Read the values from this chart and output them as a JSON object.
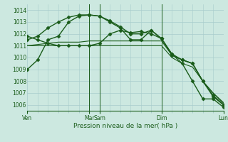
{
  "background_color": "#cce8e0",
  "grid_color": "#a8cccc",
  "line_color": "#1a5c1a",
  "tick_label_color": "#1a5c1a",
  "xlabel": "Pression niveau de la mer( hPa )",
  "xlabel_color": "#1a5c1a",
  "ymin": 1005.5,
  "ymax": 1014.5,
  "yticks": [
    1006,
    1007,
    1008,
    1009,
    1010,
    1011,
    1012,
    1013,
    1014
  ],
  "xmin": 0,
  "xmax": 57,
  "xtick_labels": [
    "Ven",
    "Mar",
    "Sam",
    "Dim",
    "Lun"
  ],
  "xtick_positions": [
    0,
    18,
    21,
    39,
    57
  ],
  "vlines": [
    18,
    21,
    39
  ],
  "vline_color": "#1a5c1a",
  "vline_lw": 0.7,
  "series": [
    {
      "x": [
        0,
        3,
        6,
        9,
        12,
        15,
        18,
        21,
        24,
        27,
        30,
        33,
        36,
        39,
        42,
        45,
        48,
        51,
        54,
        57
      ],
      "y": [
        1009.0,
        1009.8,
        1011.5,
        1011.8,
        1013.0,
        1013.5,
        1013.6,
        1013.5,
        1013.0,
        1012.5,
        1011.5,
        1011.5,
        1012.3,
        1011.6,
        1010.3,
        1009.5,
        1008.0,
        1006.5,
        1006.5,
        1005.8
      ],
      "marker": "D",
      "markersize": 2.5,
      "linewidth": 1.0
    },
    {
      "x": [
        0,
        3,
        6,
        9,
        12,
        15,
        18,
        21,
        24,
        27,
        30,
        33,
        36,
        39,
        42,
        45,
        48,
        51,
        54,
        57
      ],
      "y": [
        1011.5,
        1011.8,
        1012.5,
        1013.0,
        1013.4,
        1013.6,
        1013.6,
        1013.5,
        1013.1,
        1012.6,
        1012.0,
        1012.0,
        1012.3,
        1011.6,
        1010.3,
        1009.8,
        1009.5,
        1008.0,
        1006.7,
        1006.0
      ],
      "marker": "D",
      "markersize": 2.5,
      "linewidth": 1.0
    },
    {
      "x": [
        0,
        3,
        6,
        9,
        12,
        15,
        18,
        21,
        24,
        27,
        30,
        33,
        36,
        39,
        42,
        45,
        48,
        51,
        54,
        57
      ],
      "y": [
        1011.0,
        1011.1,
        1011.2,
        1011.3,
        1011.3,
        1011.3,
        1011.4,
        1011.4,
        1011.4,
        1011.4,
        1011.4,
        1011.4,
        1011.4,
        1011.4,
        1010.2,
        1009.8,
        1009.5,
        1008.0,
        1007.0,
        1006.2
      ],
      "marker": null,
      "markersize": 0,
      "linewidth": 0.8
    },
    {
      "x": [
        0,
        3,
        6,
        9,
        12,
        15,
        18,
        21,
        24,
        27,
        30,
        33,
        36,
        39,
        42,
        45,
        48,
        51,
        54,
        57
      ],
      "y": [
        1011.0,
        1011.0,
        1011.0,
        1011.0,
        1011.0,
        1011.0,
        1011.0,
        1011.0,
        1011.0,
        1011.0,
        1011.0,
        1011.0,
        1011.0,
        1011.0,
        1010.0,
        1009.5,
        1009.2,
        1008.0,
        1007.0,
        1006.1
      ],
      "marker": null,
      "markersize": 0,
      "linewidth": 0.8
    },
    {
      "x": [
        0,
        3,
        6,
        9,
        12,
        15,
        18,
        21,
        24,
        27,
        30,
        33,
        36,
        39,
        42,
        45,
        48,
        51,
        54,
        57
      ],
      "y": [
        1011.8,
        1011.5,
        1011.2,
        1011.0,
        1011.0,
        1011.0,
        1011.0,
        1011.2,
        1012.0,
        1012.3,
        1012.1,
        1012.2,
        1012.0,
        1011.6,
        1010.2,
        1009.8,
        1009.5,
        1008.0,
        1006.8,
        1006.0
      ],
      "marker": "D",
      "markersize": 2.5,
      "linewidth": 1.0
    }
  ]
}
